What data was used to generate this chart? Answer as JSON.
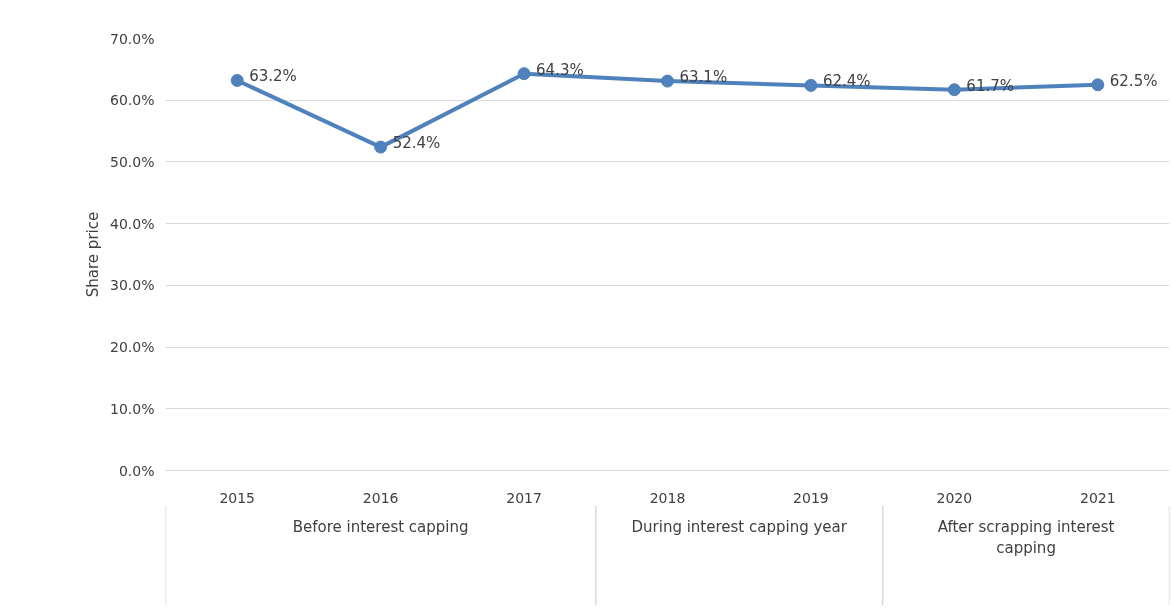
{
  "chart_data": {
    "type": "line",
    "ylabel": "Share price",
    "categories": [
      "2015",
      "2016",
      "2017",
      "2018",
      "2019",
      "2020",
      "2021"
    ],
    "series": [
      {
        "color": "#4f81bd",
        "values": [
          63.2,
          52.4,
          64.3,
          63.1,
          62.4,
          61.7,
          62.5
        ],
        "value_labels": [
          "63.2%",
          "52.4%",
          "64.3%",
          "63.1%",
          "62.4%",
          "61.7%",
          "62.5%"
        ]
      }
    ],
    "ylim": [
      0,
      70
    ],
    "yticks": [
      {
        "value": 0,
        "label": "0.0%"
      },
      {
        "value": 10,
        "label": "10.0%"
      },
      {
        "value": 20,
        "label": "20.0%"
      },
      {
        "value": 30,
        "label": "30.0%"
      },
      {
        "value": 40,
        "label": "40.0%"
      },
      {
        "value": 50,
        "label": "50.0%"
      },
      {
        "value": 60,
        "label": "60.0%"
      },
      {
        "value": 70,
        "label": "70.0%"
      }
    ],
    "annotations": [
      "Before interest capping",
      "During interest capping year",
      "After scrapping interest\ncapping"
    ],
    "grid": "y",
    "marker": "circle",
    "line_style": "solid"
  }
}
